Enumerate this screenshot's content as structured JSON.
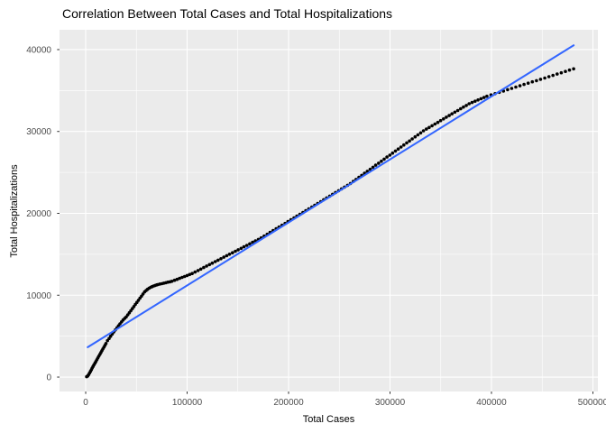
{
  "chart_data": {
    "type": "scatter",
    "title": "Correlation Between Total Cases and Total Hospitalizations",
    "xlabel": "Total Cases",
    "ylabel": "Total Hospitalizations",
    "x_ticks": {
      "values": [
        0,
        100000,
        200000,
        300000,
        400000,
        500000
      ],
      "labels": [
        "0",
        "100000",
        "200000",
        "300000",
        "400000",
        "500000"
      ]
    },
    "y_ticks": {
      "values": [
        0,
        10000,
        20000,
        30000,
        40000
      ],
      "labels": [
        "0",
        "10000",
        "20000",
        "30000",
        "40000"
      ]
    },
    "x_minor": [
      50000,
      150000,
      250000,
      350000,
      450000
    ],
    "y_minor": [
      5000,
      15000,
      25000,
      35000
    ],
    "xlim": [
      -25800,
      504900
    ],
    "ylim": [
      -1760,
      42420
    ],
    "grid": true,
    "legend": "none",
    "point_radius": 1.8,
    "trend_width": 2.1,
    "colors": {
      "figure_bg": "#FFFFFF",
      "panel_bg": "#EBEBEB",
      "grid": "#FFFFFF",
      "point": "#000000",
      "trend": "#3366FF",
      "tick_label": "#4D4D4D",
      "tick_mark": "#333333",
      "title": "#000000",
      "axis_title": "#000000"
    },
    "trend_line": {
      "x1": 2000,
      "y1": 3650,
      "x2": 481000,
      "y2": 40520
    },
    "points": [
      [
        1000,
        50
      ],
      [
        2000,
        150
      ],
      [
        2900,
        300
      ],
      [
        3800,
        500
      ],
      [
        4700,
        700
      ],
      [
        5600,
        900
      ],
      [
        6400,
        1100
      ],
      [
        7300,
        1300
      ],
      [
        8200,
        1500
      ],
      [
        9100,
        1700
      ],
      [
        10000,
        1900
      ],
      [
        11000,
        2120
      ],
      [
        12000,
        2340
      ],
      [
        13000,
        2560
      ],
      [
        14000,
        2780
      ],
      [
        15000,
        3000
      ],
      [
        16000,
        3220
      ],
      [
        17000,
        3440
      ],
      [
        18000,
        3660
      ],
      [
        19000,
        3880
      ],
      [
        20000,
        4100
      ],
      [
        21500,
        4450
      ],
      [
        23100,
        4720
      ],
      [
        24600,
        4990
      ],
      [
        26200,
        5260
      ],
      [
        27700,
        5520
      ],
      [
        29200,
        5770
      ],
      [
        30800,
        6020
      ],
      [
        32300,
        6260
      ],
      [
        33800,
        6500
      ],
      [
        35400,
        6740
      ],
      [
        36900,
        6980
      ],
      [
        38500,
        7170
      ],
      [
        40000,
        7350
      ],
      [
        41500,
        7600
      ],
      [
        43000,
        7860
      ],
      [
        44500,
        8110
      ],
      [
        46000,
        8370
      ],
      [
        47500,
        8620
      ],
      [
        49000,
        8880
      ],
      [
        50500,
        9130
      ],
      [
        52000,
        9380
      ],
      [
        53500,
        9640
      ],
      [
        55000,
        9890
      ],
      [
        56500,
        10150
      ],
      [
        58000,
        10400
      ],
      [
        59500,
        10570
      ],
      [
        61000,
        10720
      ],
      [
        62500,
        10850
      ],
      [
        64000,
        10960
      ],
      [
        65500,
        11050
      ],
      [
        67000,
        11130
      ],
      [
        68500,
        11200
      ],
      [
        70000,
        11260
      ],
      [
        71000,
        11300
      ],
      [
        73000,
        11360
      ],
      [
        75000,
        11410
      ],
      [
        77000,
        11470
      ],
      [
        79000,
        11530
      ],
      [
        81000,
        11590
      ],
      [
        83000,
        11640
      ],
      [
        85000,
        11700
      ],
      [
        87500,
        11820
      ],
      [
        90000,
        11940
      ],
      [
        92500,
        12060
      ],
      [
        95000,
        12180
      ],
      [
        97500,
        12290
      ],
      [
        100000,
        12410
      ],
      [
        102500,
        12530
      ],
      [
        105000,
        12650
      ],
      [
        107800,
        12830
      ],
      [
        110700,
        13010
      ],
      [
        113500,
        13190
      ],
      [
        116300,
        13380
      ],
      [
        119200,
        13560
      ],
      [
        122000,
        13740
      ],
      [
        124800,
        13920
      ],
      [
        127700,
        14100
      ],
      [
        130500,
        14280
      ],
      [
        133300,
        14460
      ],
      [
        136200,
        14640
      ],
      [
        139000,
        14830
      ],
      [
        141800,
        15010
      ],
      [
        144700,
        15190
      ],
      [
        147500,
        15370
      ],
      [
        150300,
        15550
      ],
      [
        153200,
        15730
      ],
      [
        156000,
        15910
      ],
      [
        158800,
        16090
      ],
      [
        161700,
        16280
      ],
      [
        164500,
        16460
      ],
      [
        167300,
        16640
      ],
      [
        170200,
        16820
      ],
      [
        173000,
        17000
      ],
      [
        175900,
        17220
      ],
      [
        178900,
        17440
      ],
      [
        181800,
        17670
      ],
      [
        184700,
        17890
      ],
      [
        187700,
        18110
      ],
      [
        190600,
        18330
      ],
      [
        193500,
        18550
      ],
      [
        196500,
        18770
      ],
      [
        199400,
        19000
      ],
      [
        202300,
        19220
      ],
      [
        205300,
        19440
      ],
      [
        208200,
        19660
      ],
      [
        211100,
        19880
      ],
      [
        214100,
        20100
      ],
      [
        217000,
        20330
      ],
      [
        219900,
        20550
      ],
      [
        222900,
        20770
      ],
      [
        225800,
        20990
      ],
      [
        228700,
        21210
      ],
      [
        231700,
        21430
      ],
      [
        234600,
        21660
      ],
      [
        237500,
        21880
      ],
      [
        240500,
        22100
      ],
      [
        243400,
        22320
      ],
      [
        246300,
        22540
      ],
      [
        249300,
        22760
      ],
      [
        252200,
        22990
      ],
      [
        255100,
        23210
      ],
      [
        258100,
        23430
      ],
      [
        261000,
        23650
      ],
      [
        263800,
        23900
      ],
      [
        266500,
        24140
      ],
      [
        269300,
        24390
      ],
      [
        272100,
        24640
      ],
      [
        274800,
        24890
      ],
      [
        277600,
        25130
      ],
      [
        280400,
        25380
      ],
      [
        283200,
        25630
      ],
      [
        285900,
        25880
      ],
      [
        288700,
        26120
      ],
      [
        291500,
        26370
      ],
      [
        294200,
        26620
      ],
      [
        297000,
        26870
      ],
      [
        299800,
        27110
      ],
      [
        302500,
        27360
      ],
      [
        305300,
        27610
      ],
      [
        308100,
        27850
      ],
      [
        310800,
        28100
      ],
      [
        313600,
        28350
      ],
      [
        316400,
        28600
      ],
      [
        319200,
        28840
      ],
      [
        321900,
        29090
      ],
      [
        324700,
        29340
      ],
      [
        327500,
        29590
      ],
      [
        330200,
        29830
      ],
      [
        333000,
        30080
      ],
      [
        335800,
        30290
      ],
      [
        338600,
        30490
      ],
      [
        341400,
        30700
      ],
      [
        344300,
        30910
      ],
      [
        347100,
        31110
      ],
      [
        349900,
        31320
      ],
      [
        352700,
        31530
      ],
      [
        355500,
        31740
      ],
      [
        358300,
        31940
      ],
      [
        361100,
        32150
      ],
      [
        363900,
        32360
      ],
      [
        366800,
        32560
      ],
      [
        369600,
        32770
      ],
      [
        372400,
        32980
      ],
      [
        375200,
        33180
      ],
      [
        378000,
        33390
      ],
      [
        380900,
        33540
      ],
      [
        383800,
        33690
      ],
      [
        386800,
        33850
      ],
      [
        389700,
        34000
      ],
      [
        392600,
        34150
      ],
      [
        395500,
        34300
      ],
      [
        399600,
        34460
      ],
      [
        403600,
        34620
      ],
      [
        407700,
        34780
      ],
      [
        411800,
        34940
      ],
      [
        415900,
        35100
      ],
      [
        419900,
        35260
      ],
      [
        424000,
        35420
      ],
      [
        428100,
        35580
      ],
      [
        432100,
        35740
      ],
      [
        436200,
        35900
      ],
      [
        440300,
        36060
      ],
      [
        444400,
        36210
      ],
      [
        448400,
        36370
      ],
      [
        452500,
        36530
      ],
      [
        456600,
        36690
      ],
      [
        460600,
        36850
      ],
      [
        464700,
        37010
      ],
      [
        468800,
        37170
      ],
      [
        472900,
        37330
      ],
      [
        476900,
        37490
      ],
      [
        481000,
        37650
      ]
    ]
  }
}
